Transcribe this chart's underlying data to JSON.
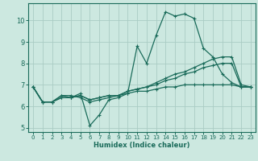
{
  "background_color": "#cce8e0",
  "grid_color": "#aaccC4",
  "line_color": "#1a6b5a",
  "xlabel": "Humidex (Indice chaleur)",
  "xlim": [
    -0.5,
    23.5
  ],
  "ylim": [
    4.8,
    10.8
  ],
  "yticks": [
    5,
    6,
    7,
    8,
    9,
    10
  ],
  "xticks": [
    0,
    1,
    2,
    3,
    4,
    5,
    6,
    7,
    8,
    9,
    10,
    11,
    12,
    13,
    14,
    15,
    16,
    17,
    18,
    19,
    20,
    21,
    22,
    23
  ],
  "series": [
    [
      6.9,
      6.2,
      6.2,
      6.5,
      6.4,
      6.6,
      5.1,
      5.6,
      6.3,
      6.4,
      6.6,
      8.8,
      8.0,
      9.3,
      10.4,
      10.2,
      10.3,
      10.1,
      8.7,
      8.3,
      7.5,
      7.1,
      6.9,
      6.9
    ],
    [
      6.9,
      6.2,
      6.2,
      6.5,
      6.5,
      6.4,
      6.2,
      6.3,
      6.4,
      6.5,
      6.7,
      6.8,
      6.9,
      7.1,
      7.3,
      7.5,
      7.6,
      7.8,
      8.0,
      8.2,
      8.3,
      8.3,
      7.0,
      6.9
    ],
    [
      6.9,
      6.2,
      6.2,
      6.4,
      6.4,
      6.5,
      6.3,
      6.4,
      6.5,
      6.5,
      6.7,
      6.8,
      6.9,
      7.0,
      7.2,
      7.3,
      7.5,
      7.6,
      7.8,
      7.9,
      8.0,
      8.0,
      6.9,
      6.9
    ],
    [
      6.9,
      6.2,
      6.2,
      6.4,
      6.4,
      6.5,
      6.3,
      6.4,
      6.5,
      6.5,
      6.6,
      6.7,
      6.7,
      6.8,
      6.9,
      6.9,
      7.0,
      7.0,
      7.0,
      7.0,
      7.0,
      7.0,
      6.9,
      6.9
    ]
  ]
}
